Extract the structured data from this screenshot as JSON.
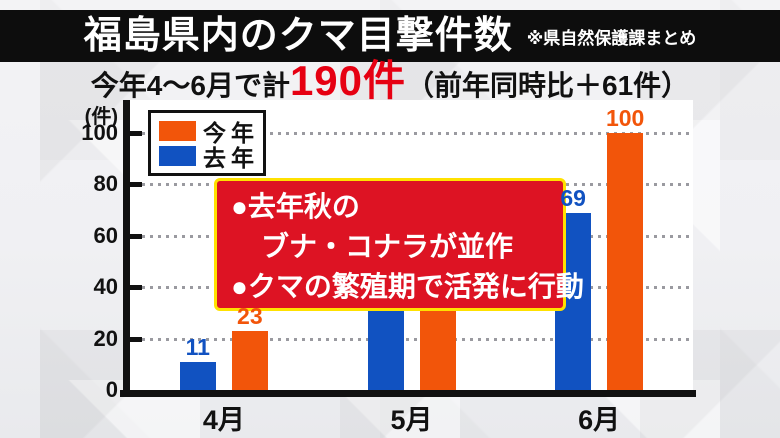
{
  "header": {
    "title": "福島県内のクマ目撃件数",
    "note": "※県自然保護課まとめ"
  },
  "subtitle": {
    "prefix": "今年4～6月で計",
    "highlight": "190件",
    "suffix": "（前年同時比＋61件）"
  },
  "legend": {
    "items": [
      {
        "label": "今年",
        "color": "#F2550A"
      },
      {
        "label": "去年",
        "color": "#1152C1"
      }
    ]
  },
  "callout": {
    "lines": [
      "●去年秋の",
      "ブナ・コナラが並作",
      "●クマの繁殖期で活発に行動"
    ],
    "bg_color": "#DD1323",
    "border_color": "#FFE100"
  },
  "colors": {
    "this_year": "#F2550A",
    "last_year": "#1152C1",
    "highlight_red": "#E60012",
    "title_bar": "#0D0D0D"
  },
  "chart_data": {
    "type": "bar",
    "title": "福島県内のクマ目撃件数",
    "unit_label": "(件)",
    "categories": [
      "4月",
      "5月",
      "6月"
    ],
    "series": [
      {
        "name": "去年",
        "color": "#1152C1",
        "values": [
          11,
          49,
          69
        ],
        "value_labels": [
          "11",
          "",
          "69"
        ]
      },
      {
        "name": "今年",
        "color": "#F2550A",
        "values": [
          23,
          67,
          100
        ],
        "value_labels": [
          "23",
          "",
          "100"
        ]
      }
    ],
    "yticks": [
      0,
      20,
      40,
      60,
      80,
      100
    ],
    "ylim": [
      0,
      100
    ],
    "grid": "dotted-horizontal",
    "legend_position": "top-left"
  }
}
